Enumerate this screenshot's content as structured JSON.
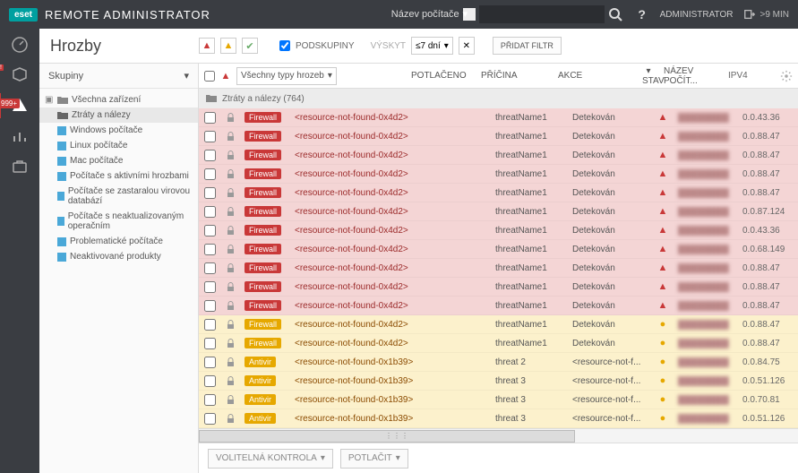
{
  "topbar": {
    "logo": "eset",
    "brand": "REMOTE ADMINISTRATOR",
    "search_label": "Název počítače",
    "admin": "ADMINISTRATOR",
    "session": ">9 MIN"
  },
  "iconcolumn": {
    "badge": "999+",
    "redmark": "!"
  },
  "page": {
    "title": "Hrozby"
  },
  "filters": {
    "podskupiny": "PODSKUPINY",
    "vyskyt_label": "VÝSKYT",
    "vyskyt_value": "≤7 dní",
    "add_filter": "PŘIDAT FILTR",
    "types_label": "Všechny typy hrozeb"
  },
  "sidebar": {
    "header": "Skupiny",
    "items": [
      {
        "label": "Všechna zařízení",
        "type": "root"
      },
      {
        "label": "Ztráty a nálezy",
        "type": "folder",
        "sel": true
      },
      {
        "label": "Windows počítače",
        "type": "sq"
      },
      {
        "label": "Linux počítače",
        "type": "sq"
      },
      {
        "label": "Mac počítače",
        "type": "sq"
      },
      {
        "label": "Počítače s aktivními hrozbami",
        "type": "sq"
      },
      {
        "label": "Počítače se zastaralou virovou databází",
        "type": "sq"
      },
      {
        "label": "Počítače s neaktualizovaným operačním",
        "type": "sq"
      },
      {
        "label": "Problematické počítače",
        "type": "sq"
      },
      {
        "label": "Neaktivované produkty",
        "type": "sq"
      }
    ]
  },
  "grid": {
    "path": "Ztráty a nálezy (764)",
    "columns": [
      "POTLAČENO",
      "PŘÍČINA",
      "AKCE",
      "STAV",
      "NÁZEV POČÍT...",
      "IPV4"
    ],
    "rows": [
      {
        "sev": "red",
        "tag": "Firewall",
        "tagc": "fw-red",
        "res": "<resource-not-found-0x4d2>",
        "pri": "threatName1",
        "akce": "Detekován",
        "stav": "r",
        "ip": "0.0.43.36"
      },
      {
        "sev": "red",
        "tag": "Firewall",
        "tagc": "fw-red",
        "res": "<resource-not-found-0x4d2>",
        "pri": "threatName1",
        "akce": "Detekován",
        "stav": "r",
        "ip": "0.0.88.47"
      },
      {
        "sev": "red",
        "tag": "Firewall",
        "tagc": "fw-red",
        "res": "<resource-not-found-0x4d2>",
        "pri": "threatName1",
        "akce": "Detekován",
        "stav": "r",
        "ip": "0.0.88.47"
      },
      {
        "sev": "red",
        "tag": "Firewall",
        "tagc": "fw-red",
        "res": "<resource-not-found-0x4d2>",
        "pri": "threatName1",
        "akce": "Detekován",
        "stav": "r",
        "ip": "0.0.88.47"
      },
      {
        "sev": "red",
        "tag": "Firewall",
        "tagc": "fw-red",
        "res": "<resource-not-found-0x4d2>",
        "pri": "threatName1",
        "akce": "Detekován",
        "stav": "r",
        "ip": "0.0.88.47"
      },
      {
        "sev": "red",
        "tag": "Firewall",
        "tagc": "fw-red",
        "res": "<resource-not-found-0x4d2>",
        "pri": "threatName1",
        "akce": "Detekován",
        "stav": "r",
        "ip": "0.0.87.124"
      },
      {
        "sev": "red",
        "tag": "Firewall",
        "tagc": "fw-red",
        "res": "<resource-not-found-0x4d2>",
        "pri": "threatName1",
        "akce": "Detekován",
        "stav": "r",
        "ip": "0.0.43.36"
      },
      {
        "sev": "red",
        "tag": "Firewall",
        "tagc": "fw-red",
        "res": "<resource-not-found-0x4d2>",
        "pri": "threatName1",
        "akce": "Detekován",
        "stav": "r",
        "ip": "0.0.68.149"
      },
      {
        "sev": "red",
        "tag": "Firewall",
        "tagc": "fw-red",
        "res": "<resource-not-found-0x4d2>",
        "pri": "threatName1",
        "akce": "Detekován",
        "stav": "r",
        "ip": "0.0.88.47"
      },
      {
        "sev": "red",
        "tag": "Firewall",
        "tagc": "fw-red",
        "res": "<resource-not-found-0x4d2>",
        "pri": "threatName1",
        "akce": "Detekován",
        "stav": "r",
        "ip": "0.0.88.47"
      },
      {
        "sev": "red",
        "tag": "Firewall",
        "tagc": "fw-red",
        "res": "<resource-not-found-0x4d2>",
        "pri": "threatName1",
        "akce": "Detekován",
        "stav": "r",
        "ip": "0.0.88.47"
      },
      {
        "sev": "yel",
        "tag": "Firewall",
        "tagc": "fw-yel",
        "res": "<resource-not-found-0x4d2>",
        "pri": "threatName1",
        "akce": "Detekován",
        "stav": "y",
        "ip": "0.0.88.47"
      },
      {
        "sev": "yel",
        "tag": "Firewall",
        "tagc": "fw-yel",
        "res": "<resource-not-found-0x4d2>",
        "pri": "threatName1",
        "akce": "Detekován",
        "stav": "y",
        "ip": "0.0.88.47"
      },
      {
        "sev": "yel",
        "tag": "Antivir",
        "tagc": "av-yel",
        "res": "<resource-not-found-0x1b39>",
        "pri": "threat 2",
        "akce": "<resource-not-f...",
        "stav": "y",
        "ip": "0.0.84.75"
      },
      {
        "sev": "yel",
        "tag": "Antivir",
        "tagc": "av-yel",
        "res": "<resource-not-found-0x1b39>",
        "pri": "threat 3",
        "akce": "<resource-not-f...",
        "stav": "y",
        "ip": "0.0.51.126"
      },
      {
        "sev": "yel",
        "tag": "Antivir",
        "tagc": "av-yel",
        "res": "<resource-not-found-0x1b39>",
        "pri": "threat 3",
        "akce": "<resource-not-f...",
        "stav": "y",
        "ip": "0.0.70.81"
      },
      {
        "sev": "yel",
        "tag": "Antivir",
        "tagc": "av-yel",
        "res": "<resource-not-found-0x1b39>",
        "pri": "threat 3",
        "akce": "<resource-not-f...",
        "stav": "y",
        "ip": "0.0.51.126"
      }
    ]
  },
  "footer": {
    "btn1": "VOLITELNÁ KONTROLA",
    "btn2": "POTLAČIT"
  }
}
